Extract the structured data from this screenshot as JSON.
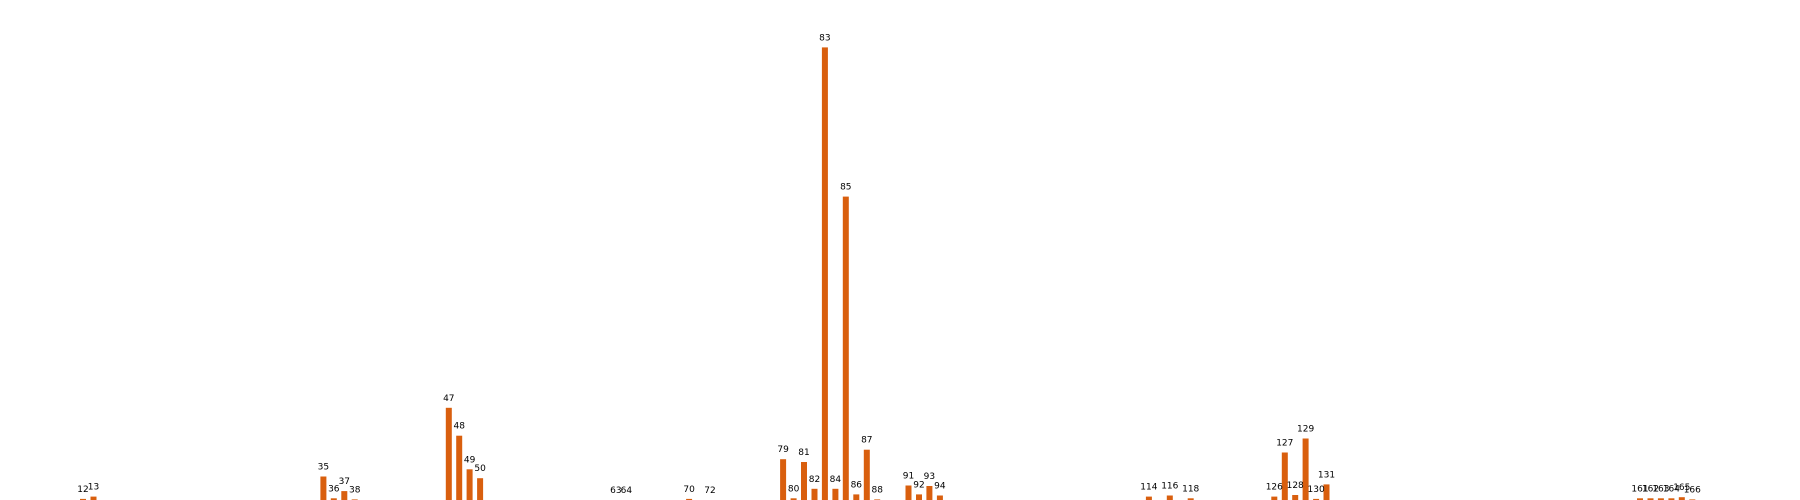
{
  "chart_data": {
    "type": "bar",
    "bar_color": "#d95f0e",
    "background": "#ffffff",
    "grid": false,
    "axes_visible": false,
    "categories": [
      "12",
      "13",
      "35",
      "36",
      "37",
      "38",
      "47",
      "48",
      "49",
      "50",
      "63",
      "64",
      "70",
      "72",
      "79",
      "80",
      "81",
      "82",
      "83",
      "84",
      "85",
      "86",
      "87",
      "88",
      "91",
      "92",
      "93",
      "94",
      "114",
      "116",
      "118",
      "126",
      "127",
      "128",
      "129",
      "130",
      "131",
      "161",
      "162",
      "163",
      "164",
      "165",
      "166"
    ],
    "values": [
      0.2,
      0.6,
      4.2,
      0.3,
      1.6,
      0.1,
      16.5,
      11.5,
      5.5,
      3.9,
      0.0,
      0.0,
      0.2,
      0.0,
      7.3,
      0.3,
      6.8,
      2.0,
      81.0,
      2.0,
      54.3,
      1.0,
      9.0,
      0.1,
      2.6,
      1.0,
      2.5,
      0.8,
      0.6,
      0.8,
      0.3,
      0.6,
      8.5,
      0.9,
      11.0,
      0.2,
      2.8,
      0.3,
      0.3,
      0.3,
      0.3,
      0.5,
      0.1
    ],
    "ylim": [
      0,
      85
    ]
  }
}
